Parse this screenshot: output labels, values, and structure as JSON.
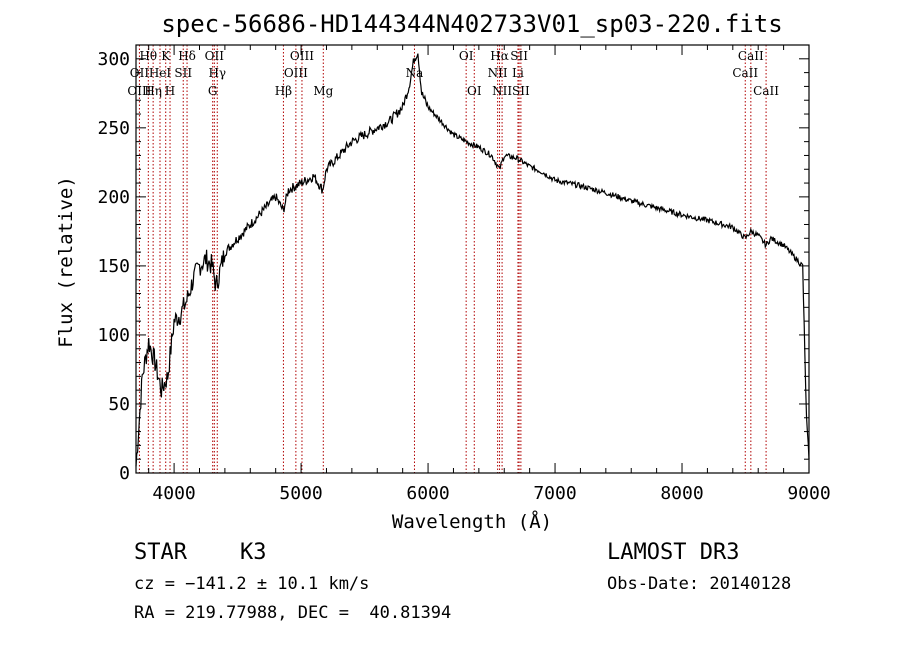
{
  "chart_data": {
    "type": "line",
    "title": "spec-56686-HD144344N402733V01_sp03-220.fits",
    "xlabel": "Wavelength (Å)",
    "ylabel": "Flux (relative)",
    "xlim": [
      3700,
      9000
    ],
    "ylim": [
      0,
      310
    ],
    "xticks": [
      4000,
      5000,
      6000,
      7000,
      8000,
      9000
    ],
    "yticks": [
      0,
      50,
      100,
      150,
      200,
      250,
      300
    ],
    "grid": false,
    "series": [
      {
        "x": [
          3700,
          3750,
          3800,
          3850,
          3900,
          3950,
          4000,
          4050,
          4100,
          4150,
          4200,
          4250,
          4300,
          4330,
          4400,
          4500,
          4600,
          4700,
          4800,
          4860,
          4900,
          5000,
          5100,
          5170,
          5200,
          5300,
          5400,
          5500,
          5600,
          5700,
          5800,
          5850,
          5890,
          5920,
          5950,
          6000,
          6100,
          6200,
          6300,
          6400,
          6500,
          6563,
          6600,
          6700,
          6800,
          6900,
          7000,
          7200,
          7400,
          7600,
          7800,
          8000,
          8200,
          8400,
          8498,
          8542,
          8600,
          8662,
          8700,
          8800,
          8850,
          8900,
          8950,
          8980,
          9000
        ],
        "y": [
          5,
          70,
          95,
          80,
          60,
          70,
          110,
          115,
          125,
          140,
          150,
          155,
          150,
          135,
          160,
          170,
          180,
          190,
          200,
          190,
          205,
          210,
          215,
          205,
          220,
          230,
          240,
          245,
          250,
          255,
          265,
          280,
          300,
          305,
          275,
          265,
          255,
          245,
          240,
          236,
          230,
          220,
          230,
          228,
          222,
          218,
          212,
          208,
          203,
          197,
          192,
          187,
          183,
          178,
          170,
          175,
          172,
          165,
          170,
          165,
          160,
          155,
          150,
          40,
          10
        ]
      }
    ],
    "line_labels": [
      {
        "text": "Hθ",
        "x": 3797,
        "row": 1,
        "wave": 3797
      },
      {
        "text": "K",
        "x": 3934,
        "row": 1,
        "wave": 3934
      },
      {
        "text": "Hδ",
        "x": 4102,
        "row": 1,
        "wave": 4102
      },
      {
        "text": "OII",
        "x": 4317,
        "row": 1,
        "wave": 4317
      },
      {
        "text": "OIII",
        "x": 5007,
        "row": 1,
        "wave": 5007
      },
      {
        "text": "OI",
        "x": 6300,
        "row": 1,
        "wave": 6300
      },
      {
        "text": "Hα",
        "x": 6563,
        "row": 1,
        "wave": 6563
      },
      {
        "text": "SII",
        "x": 6717,
        "row": 1,
        "wave": 6717
      },
      {
        "text": "CaII",
        "x": 8542,
        "row": 1,
        "wave": 8542
      },
      {
        "text": "OII",
        "x": 3727,
        "row": 2,
        "wave": 3727
      },
      {
        "text": "HeI",
        "x": 3889,
        "row": 2,
        "wave": 3889
      },
      {
        "text": "SII",
        "x": 4072,
        "row": 2,
        "wave": 4072
      },
      {
        "text": "Hγ",
        "x": 4340,
        "row": 2,
        "wave": 4340
      },
      {
        "text": "OIII",
        "x": 4959,
        "row": 2,
        "wave": 4959
      },
      {
        "text": "NII",
        "x": 6548,
        "row": 2,
        "wave": 6548
      },
      {
        "text": "Li",
        "x": 6708,
        "row": 2,
        "wave": 6708
      },
      {
        "text": "CaII",
        "x": 8498,
        "row": 2,
        "wave": 8498
      },
      {
        "text": "Na",
        "x": 5893,
        "row": 2,
        "wave": 5893
      },
      {
        "text": "OIII",
        "x": 3727,
        "row": 3,
        "wave": 3727
      },
      {
        "text": "Hη",
        "x": 3835,
        "row": 3,
        "wave": 3835
      },
      {
        "text": "H",
        "x": 3968,
        "row": 3,
        "wave": 3968
      },
      {
        "text": "G",
        "x": 4304,
        "row": 3,
        "wave": 4304
      },
      {
        "text": "Hβ",
        "x": 4861,
        "row": 3,
        "wave": 4861
      },
      {
        "text": "Mg",
        "x": 5175,
        "row": 3,
        "wave": 5175
      },
      {
        "text": "OI",
        "x": 6364,
        "row": 3,
        "wave": 6364
      },
      {
        "text": "NII",
        "x": 6583,
        "row": 3,
        "wave": 6583
      },
      {
        "text": "SII",
        "x": 6731,
        "row": 3,
        "wave": 6731
      },
      {
        "text": "CaII",
        "x": 8662,
        "row": 3,
        "wave": 8662
      }
    ],
    "line_color": "#b00000"
  },
  "info": {
    "class_label": "STAR",
    "subclass": "K3",
    "survey": "LAMOST DR3",
    "cz": "cz = −141.2 ± 10.1 km/s",
    "obs_date": "Obs-Date: 20140128",
    "coords": "RA = 219.77988, DEC =  40.81394"
  }
}
